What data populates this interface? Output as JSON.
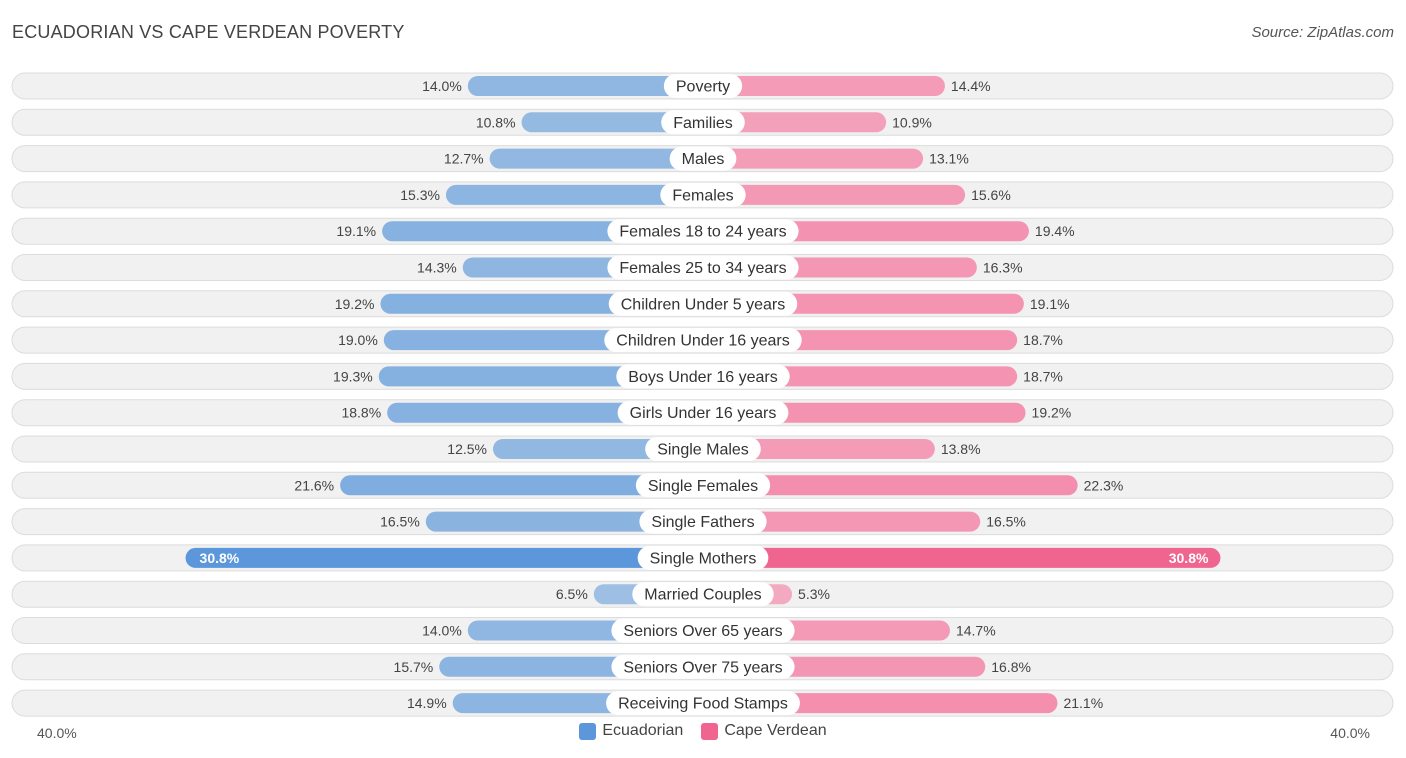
{
  "header": {
    "title": "ECUADORIAN VS CAPE VERDEAN POVERTY",
    "source": "Source: ZipAtlas.com"
  },
  "colors": {
    "left": "#6fa3dc",
    "left_strong": "#5b97da",
    "right": "#f47fa4",
    "right_strong": "#ef6590",
    "row_bg": "#f1f1f1",
    "row_border": "#dcdcdc"
  },
  "chart_data": {
    "type": "bar",
    "orientation": "horizontal-diverging",
    "title": "ECUADORIAN VS CAPE VERDEAN POVERTY",
    "categories": [
      "Poverty",
      "Families",
      "Males",
      "Females",
      "Females 18 to 24 years",
      "Females 25 to 34 years",
      "Children Under 5 years",
      "Children Under 16 years",
      "Boys Under 16 years",
      "Girls Under 16 years",
      "Single Males",
      "Single Females",
      "Single Fathers",
      "Single Mothers",
      "Married Couples",
      "Seniors Over 65 years",
      "Seniors Over 75 years",
      "Receiving Food Stamps"
    ],
    "series": [
      {
        "name": "Ecuadorian",
        "values": [
          14.0,
          10.8,
          12.7,
          15.3,
          19.1,
          14.3,
          19.2,
          19.0,
          19.3,
          18.8,
          12.5,
          21.6,
          16.5,
          30.8,
          6.5,
          14.0,
          15.7,
          14.9
        ],
        "labels": [
          "14.0%",
          "10.8%",
          "12.7%",
          "15.3%",
          "19.1%",
          "14.3%",
          "19.2%",
          "19.0%",
          "19.3%",
          "18.8%",
          "12.5%",
          "21.6%",
          "16.5%",
          "30.8%",
          "6.5%",
          "14.0%",
          "15.7%",
          "14.9%"
        ]
      },
      {
        "name": "Cape Verdean",
        "values": [
          14.4,
          10.9,
          13.1,
          15.6,
          19.4,
          16.3,
          19.1,
          18.7,
          18.7,
          19.2,
          13.8,
          22.3,
          16.5,
          30.8,
          5.3,
          14.7,
          16.8,
          21.1
        ],
        "labels": [
          "14.4%",
          "10.9%",
          "13.1%",
          "15.6%",
          "19.4%",
          "16.3%",
          "19.1%",
          "18.7%",
          "18.7%",
          "19.2%",
          "13.8%",
          "22.3%",
          "16.5%",
          "30.8%",
          "5.3%",
          "14.7%",
          "16.8%",
          "21.1%"
        ]
      }
    ],
    "xlim": [
      0,
      40
    ],
    "axis_min_label": "40.0%",
    "axis_max_label": "40.0%",
    "legend_position": "bottom-center"
  },
  "legend": {
    "left_label": "Ecuadorian",
    "right_label": "Cape Verdean"
  }
}
